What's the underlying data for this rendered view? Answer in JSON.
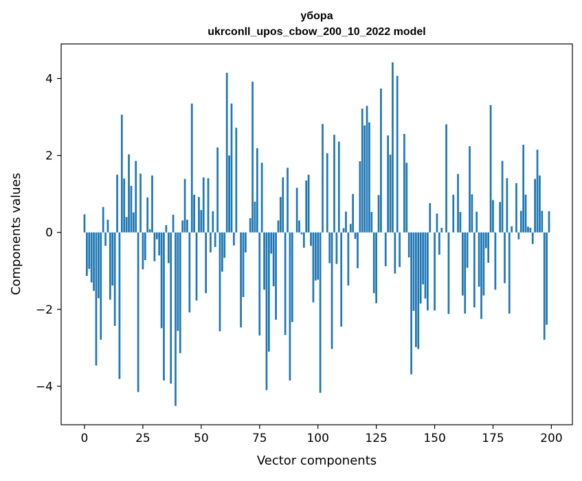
{
  "chart_data": {
    "type": "bar",
    "title": "убора",
    "subtitle": "ukrconll_upos_cbow_200_10_2022 model",
    "xlabel": "Vector components",
    "ylabel": "Components values",
    "xlim": [
      -10,
      209
    ],
    "ylim": [
      -5.0,
      4.9
    ],
    "xticks": [
      0,
      25,
      50,
      75,
      100,
      125,
      150,
      175,
      200
    ],
    "yticks": [
      -4,
      -2,
      0,
      2,
      4
    ],
    "grid": false,
    "bar_color": "#1f77b4",
    "x_start": 0,
    "values": [
      0.47,
      -1.13,
      -0.95,
      -1.3,
      -1.52,
      -3.46,
      -1.71,
      -2.79,
      0.66,
      -0.35,
      0.33,
      -1.75,
      -1.38,
      -2.43,
      1.5,
      -3.81,
      3.06,
      1.4,
      0.4,
      2.03,
      1.21,
      0.52,
      1.86,
      -4.15,
      1.53,
      -0.96,
      -0.72,
      0.91,
      0.08,
      1.48,
      -0.75,
      -0.18,
      -0.6,
      -2.49,
      -3.85,
      0.19,
      -0.8,
      -3.93,
      0.46,
      -4.51,
      -2.56,
      -3.14,
      0.31,
      1.39,
      0.33,
      -2.08,
      3.35,
      0.98,
      -1.77,
      0.92,
      0.58,
      1.43,
      -1.58,
      1.41,
      -0.52,
      0.55,
      -0.38,
      2.21,
      -2.57,
      -1.02,
      -0.66,
      4.15,
      2.0,
      3.35,
      -0.34,
      2.72,
      0.0,
      -2.47,
      -1.68,
      -0.52,
      0.0,
      0.37,
      3.92,
      0.8,
      2.19,
      -2.68,
      1.81,
      -1.49,
      -4.1,
      -3.1,
      -0.55,
      -1.4,
      -2.27,
      0.31,
      0.92,
      1.43,
      -2.67,
      1.68,
      -3.85,
      -2.33,
      0.0,
      1.16,
      0.31,
      -0.05,
      -0.4,
      1.35,
      1.5,
      -0.35,
      -1.82,
      -1.25,
      -1.23,
      -4.17,
      2.82,
      0.0,
      2.06,
      -0.8,
      -3.03,
      2.54,
      -0.82,
      2.36,
      -2.45,
      0.11,
      0.54,
      -1.38,
      0.22,
      1.0,
      -0.17,
      -0.93,
      1.85,
      3.22,
      2.78,
      3.29,
      2.86,
      0.53,
      -1.58,
      -1.84,
      0.97,
      3.74,
      0.0,
      -0.88,
      2.52,
      2.02,
      4.42,
      -1.07,
      4.07,
      -0.9,
      0.0,
      2.56,
      1.81,
      -0.65,
      -3.69,
      -2.04,
      -2.98,
      -3.03,
      -1.85,
      -1.35,
      -1.72,
      -2.03,
      0.76,
      0.0,
      -2.03,
      0.49,
      -0.58,
      0.12,
      0.0,
      2.81,
      -2.12,
      0.0,
      0.98,
      0.0,
      1.52,
      0.53,
      -1.64,
      -2.11,
      -0.92,
      2.24,
      0.99,
      -1.95,
      0.54,
      -1.41,
      -2.25,
      -1.64,
      -0.41,
      -0.79,
      3.31,
      0.84,
      -1.49,
      0.0,
      0.79,
      1.86,
      -1.32,
      1.41,
      -2.11,
      0.16,
      0.0,
      1.28,
      -0.18,
      0.56,
      2.28,
      0.98,
      0.15,
      0.12,
      -0.3,
      1.39,
      2.15,
      1.48,
      0.56,
      -2.79,
      -2.4,
      0.55
    ]
  }
}
